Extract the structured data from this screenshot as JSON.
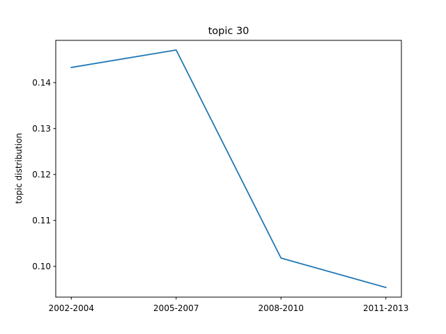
{
  "chart_data": {
    "type": "line",
    "title": "topic 30",
    "xlabel": "",
    "ylabel": "topic distribution",
    "categories": [
      "2002-2004",
      "2005-2007",
      "2008-2010",
      "2011-2013"
    ],
    "series": [
      {
        "values": [
          0.1433,
          0.1471,
          0.1018,
          0.0954
        ],
        "color": "#1f77b4"
      }
    ],
    "ylim": [
      0.0933,
      0.1492
    ],
    "yticks": [
      0.1,
      0.11,
      0.12,
      0.13,
      0.14
    ],
    "ytick_labels": [
      "0.10",
      "0.11",
      "0.12",
      "0.13",
      "0.14"
    ],
    "grid": false,
    "legend": "none"
  }
}
